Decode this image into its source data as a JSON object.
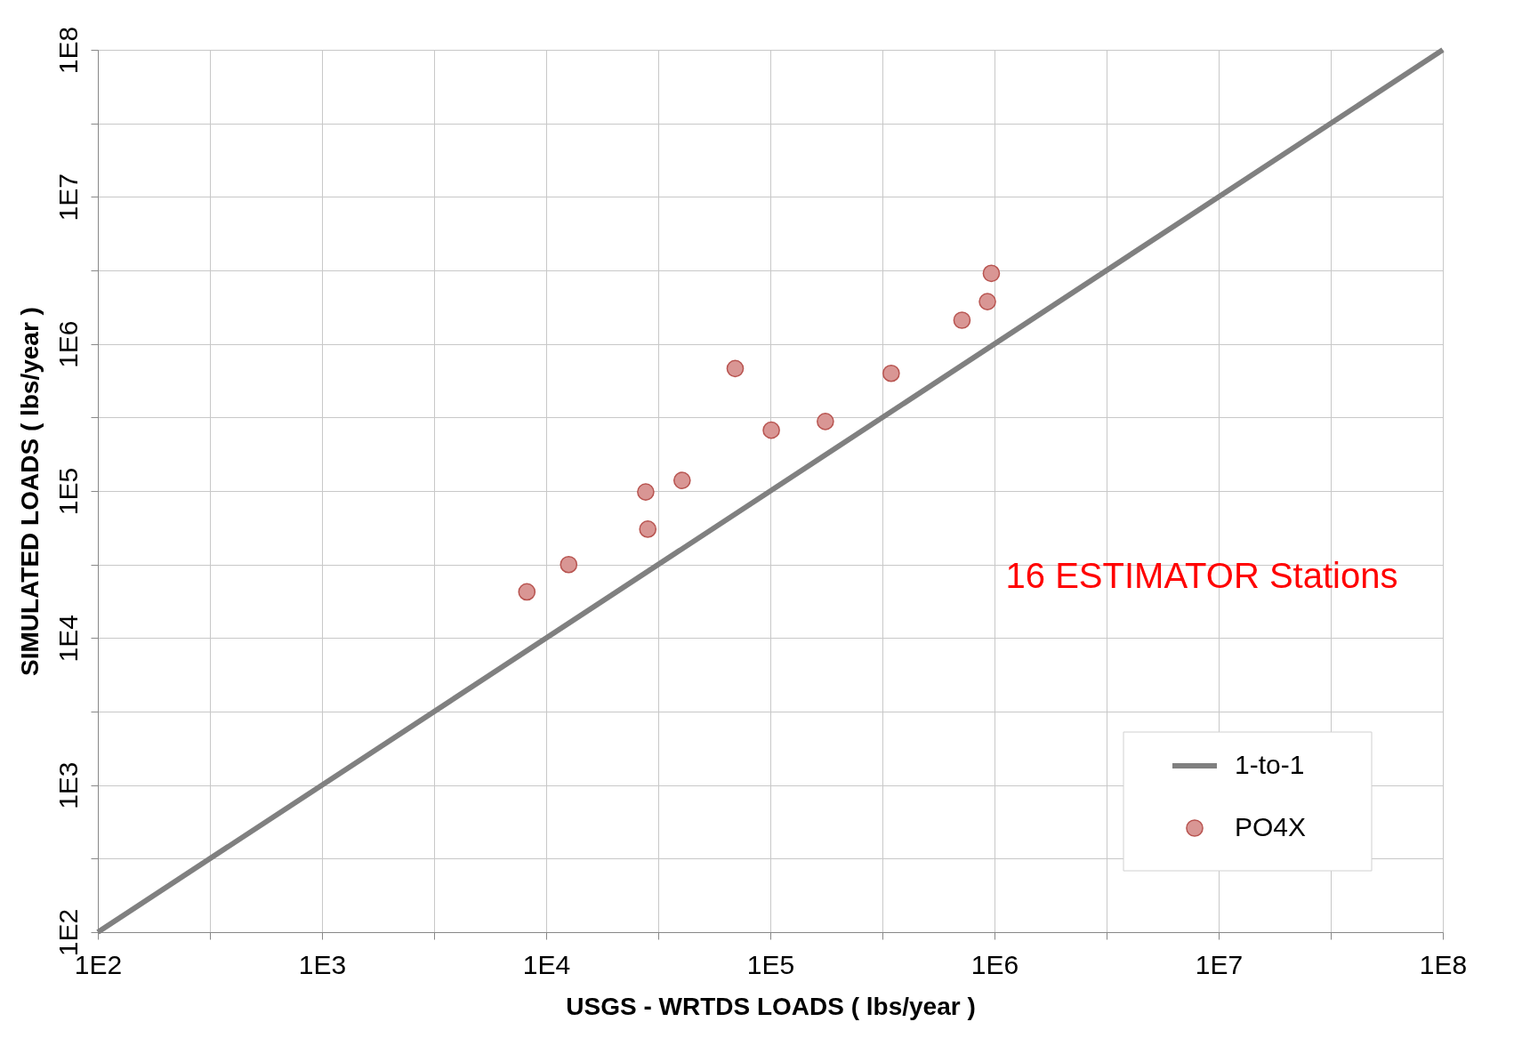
{
  "chart_data": {
    "type": "scatter",
    "xlabel": "USGS - WRTDS LOADS ( lbs/year )",
    "ylabel": "SIMULATED LOADS ( lbs/year )",
    "log": "xy",
    "grid": true,
    "legend": "bottom right",
    "xlim": [
      100,
      100000000
    ],
    "ylim": [
      100,
      100000000
    ],
    "xticks": [
      {
        "value": 100,
        "label": "1E2"
      },
      {
        "value": 316.2,
        "label": null
      },
      {
        "value": 1000,
        "label": "1E3"
      },
      {
        "value": 3162,
        "label": null
      },
      {
        "value": 10000,
        "label": "1E4"
      },
      {
        "value": 31620,
        "label": null
      },
      {
        "value": 100000,
        "label": "1E5"
      },
      {
        "value": 316200,
        "label": null
      },
      {
        "value": 1000000,
        "label": "1E6"
      },
      {
        "value": 3162000,
        "label": null
      },
      {
        "value": 10000000,
        "label": "1E7"
      },
      {
        "value": 31620000,
        "label": null
      },
      {
        "value": 100000000,
        "label": "1E8"
      }
    ],
    "yticks": [
      {
        "value": 100,
        "label": "1E2"
      },
      {
        "value": 316.2,
        "label": null
      },
      {
        "value": 1000,
        "label": "1E3"
      },
      {
        "value": 3162,
        "label": null
      },
      {
        "value": 10000,
        "label": "1E4"
      },
      {
        "value": 31620,
        "label": null
      },
      {
        "value": 100000,
        "label": "1E5"
      },
      {
        "value": 316200,
        "label": null
      },
      {
        "value": 1000000,
        "label": "1E6"
      },
      {
        "value": 3162000,
        "label": null
      },
      {
        "value": 10000000,
        "label": "1E7"
      },
      {
        "value": 31620000,
        "label": null
      },
      {
        "value": 100000000,
        "label": "1E8"
      }
    ],
    "series": [
      {
        "name": "1-to-1",
        "type": "line",
        "color": "#808080",
        "x": [
          100,
          100000000
        ],
        "values": [
          100,
          100000000
        ]
      },
      {
        "name": "PO4X",
        "color": "#d99694",
        "x": [
          8200,
          12600,
          27800,
          28400,
          40400,
          69700,
          101000,
          176000,
          346000,
          716000,
          930000,
          968000
        ],
        "values": [
          20600,
          31600,
          98500,
          55000,
          118000,
          680000,
          259000,
          297000,
          631000,
          1450000,
          1940000,
          3020000
        ]
      }
    ],
    "annotations": [
      "16 ESTIMATOR Stations"
    ]
  }
}
